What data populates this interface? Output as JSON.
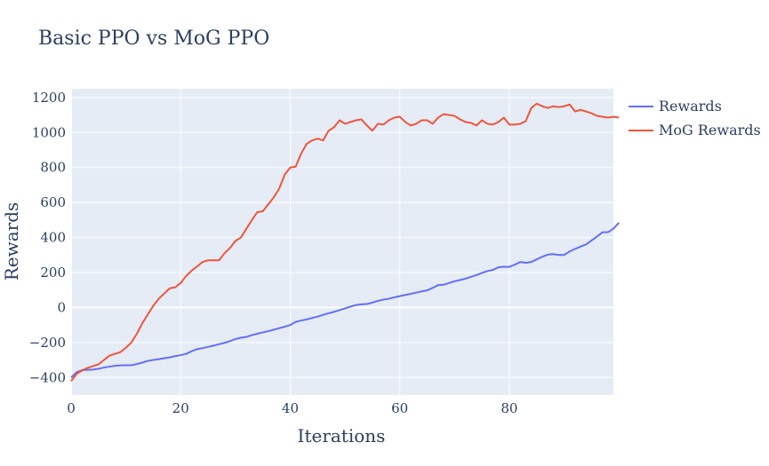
{
  "chart_data": {
    "type": "line",
    "title": "Basic PPO vs MoG PPO",
    "xlabel": "Iterations",
    "ylabel": "Rewards",
    "xlim": [
      0,
      99
    ],
    "ylim": [
      -500,
      1250
    ],
    "xticks": [
      0,
      20,
      40,
      60,
      80
    ],
    "yticks": [
      -400,
      -200,
      0,
      200,
      400,
      600,
      800,
      1000,
      1200
    ],
    "x_tick_labels": [
      "0",
      "20",
      "40",
      "60",
      "80"
    ],
    "y_tick_labels": [
      "−400",
      "−200",
      "0",
      "200",
      "400",
      "600",
      "800",
      "1000",
      "1200"
    ],
    "grid": true,
    "legend_position": "right",
    "background": "#e5ecf6",
    "series": [
      {
        "name": "Rewards",
        "color": "#636efa",
        "values": [
          -400,
          -370,
          -358,
          -356,
          -355,
          -350,
          -343,
          -338,
          -333,
          -331,
          -330,
          -330,
          -323,
          -315,
          -305,
          -300,
          -295,
          -290,
          -285,
          -278,
          -272,
          -265,
          -250,
          -238,
          -232,
          -225,
          -218,
          -210,
          -202,
          -192,
          -180,
          -173,
          -168,
          -158,
          -150,
          -142,
          -135,
          -127,
          -118,
          -110,
          -100,
          -82,
          -75,
          -68,
          -60,
          -52,
          -42,
          -33,
          -25,
          -15,
          -5,
          5,
          14,
          18,
          20,
          28,
          38,
          45,
          50,
          58,
          65,
          72,
          78,
          85,
          92,
          98,
          112,
          128,
          130,
          140,
          150,
          157,
          165,
          175,
          185,
          198,
          208,
          215,
          230,
          233,
          232,
          245,
          260,
          255,
          260,
          275,
          290,
          302,
          305,
          300,
          300,
          320,
          335,
          348,
          360,
          383,
          405,
          430,
          430,
          450,
          485
        ]
      },
      {
        "name": "MoG Rewards",
        "color": "#ef553b",
        "values": [
          -420,
          -380,
          -360,
          -345,
          -335,
          -325,
          -300,
          -275,
          -265,
          -255,
          -230,
          -200,
          -150,
          -90,
          -40,
          10,
          50,
          80,
          110,
          115,
          140,
          180,
          210,
          235,
          260,
          270,
          270,
          270,
          310,
          340,
          380,
          400,
          450,
          500,
          545,
          550,
          590,
          630,
          680,
          760,
          800,
          805,
          880,
          935,
          955,
          965,
          955,
          1010,
          1030,
          1070,
          1050,
          1060,
          1070,
          1075,
          1040,
          1010,
          1050,
          1045,
          1070,
          1085,
          1090,
          1060,
          1040,
          1050,
          1070,
          1070,
          1050,
          1085,
          1105,
          1100,
          1095,
          1075,
          1060,
          1055,
          1040,
          1070,
          1050,
          1045,
          1060,
          1085,
          1045,
          1045,
          1050,
          1065,
          1140,
          1165,
          1150,
          1140,
          1150,
          1145,
          1150,
          1160,
          1120,
          1130,
          1120,
          1110,
          1095,
          1090,
          1085,
          1090,
          1085
        ]
      }
    ]
  }
}
